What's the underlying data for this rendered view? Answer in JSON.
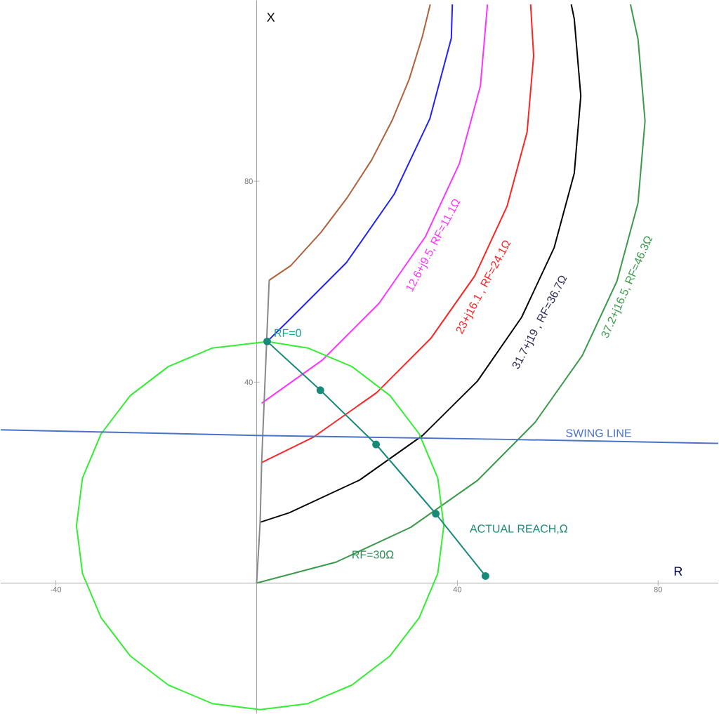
{
  "chart_data": {
    "type": "line",
    "xlabel": "R",
    "ylabel": "X",
    "xlim": [
      -51,
      92
    ],
    "ylim": [
      -26,
      116
    ],
    "xticks": [
      -40,
      40,
      80
    ],
    "yticks": [
      40,
      80
    ],
    "grid": false,
    "legend": false,
    "marker": "none",
    "annotations": [
      {
        "text": "RF=0",
        "x": 2.1,
        "y": 48.1
      },
      {
        "text": "RF=30Ω",
        "x": 22.6,
        "y": 8.2
      }
    ],
    "series": [
      {
        "color": "#b0603a",
        "x": [
          2.5,
          6.8,
          12.8,
          18.1,
          22.9,
          27,
          30.4,
          33,
          34.6
        ],
        "values": [
          60.3,
          63.2,
          69.8,
          76.8,
          84.2,
          92.1,
          100.3,
          108.7,
          115.2
        ]
      },
      {
        "color": "#2020ff",
        "x": [
          2.1,
          6.2,
          17.9,
          27.4,
          34.5,
          38.8,
          39
        ],
        "values": [
          48.1,
          52.1,
          63.8,
          77.4,
          92.4,
          108.5,
          115.2
        ]
      },
      {
        "name": "12.6+j9.5, RF=11.1Ω",
        "color": "#ff33ff",
        "x": [
          1,
          13.1,
          24.4,
          33.6,
          40.4,
          44.6,
          46
        ],
        "values": [
          35.8,
          44.4,
          55.7,
          68.9,
          83.5,
          99,
          115.2
        ]
      },
      {
        "name": "23+j16.1 , RF=24.1Ω",
        "color": "#ff2222",
        "x": [
          1,
          11.4,
          23.9,
          34.7,
          43.5,
          49.9,
          53.9,
          55.2,
          54.6
        ],
        "values": [
          24,
          29.1,
          37.9,
          48.7,
          61.2,
          75,
          89.8,
          105,
          115.2
        ]
      },
      {
        "name": "31.7+j19 , RF=36.7Ω",
        "color": "#000000",
        "x": [
          0.7,
          6.5,
          20.5,
          33.1,
          44,
          52.8,
          59.3,
          63.3,
          64.6,
          63.3,
          62.7
        ],
        "values": [
          12.1,
          14,
          20.5,
          29.4,
          40.2,
          52.9,
          66.8,
          81.6,
          97,
          112.3,
          115.2
        ]
      },
      {
        "name": "37.2+j16.5, RF=46.3Ω",
        "color": "#3a9a4a",
        "x": [
          0,
          15.9,
          30.7,
          44.1,
          55.5,
          64.9,
          71.8,
          76,
          77.4,
          76,
          74.5
        ],
        "values": [
          0,
          4.2,
          11.1,
          20.5,
          32,
          45.3,
          60.1,
          75.7,
          92,
          108.3,
          115.2
        ]
      },
      {
        "color": "#888888",
        "x": [
          0,
          0.7,
          1,
          2.5
        ],
        "values": [
          0,
          12.1,
          24,
          60.3
        ]
      },
      {
        "color": "#33ee33",
        "x": [
          1.6,
          -8.8,
          -17.6,
          -25.2,
          -31,
          -34.7,
          -35.9,
          -34.7,
          -31,
          -25.2,
          -17.6,
          -8.8,
          0.7,
          10.2,
          19,
          26.6,
          32.4,
          36.1,
          37.3,
          36.1,
          32.4,
          26.6,
          19,
          10.2,
          2.6
        ],
        "values": [
          48,
          46.8,
          43.1,
          37.3,
          29.7,
          20.9,
          11.4,
          1.9,
          -6.9,
          -14.5,
          -20.3,
          -24,
          -25.2,
          -24,
          -20.3,
          -14.5,
          -6.9,
          1.9,
          11.4,
          20.9,
          29.7,
          37.3,
          43.1,
          46.8,
          48
        ]
      },
      {
        "name": "SWING LINE",
        "color": "#4a72c8",
        "x": [
          -51,
          0,
          50,
          92
        ],
        "values": [
          30.5,
          29.4,
          28.6,
          27.8
        ]
      },
      {
        "name": "ACTUAL REACH,Ω",
        "color": "#188a78",
        "marker": "circle",
        "x": [
          2.1,
          12.7,
          23.8,
          35.7,
          45.6
        ],
        "values": [
          48.1,
          38.4,
          27.6,
          13.8,
          1.4
        ]
      }
    ]
  }
}
